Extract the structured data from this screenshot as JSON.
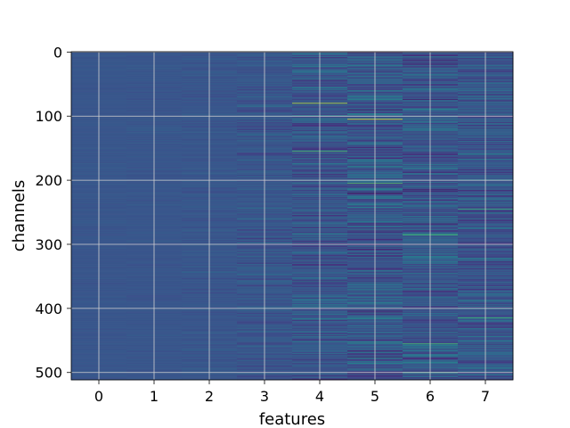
{
  "chart_data": {
    "type": "heatmap",
    "title": "",
    "xlabel": "features",
    "ylabel": "channels",
    "x_ticks": [
      "0",
      "1",
      "2",
      "3",
      "4",
      "5",
      "6",
      "7"
    ],
    "y_ticks": [
      "0",
      "100",
      "200",
      "300",
      "400",
      "500"
    ],
    "y_tick_values": [
      0,
      100,
      200,
      300,
      400,
      500
    ],
    "n_features": 8,
    "n_channels": 512,
    "xlim": [
      -0.5,
      7.5
    ],
    "ylim": [
      511.5,
      -0.5
    ],
    "y_inverted": true,
    "grid": true,
    "colormap": "viridis",
    "column_variance": [
      0.05,
      0.06,
      0.1,
      0.2,
      0.36,
      0.48,
      0.42,
      0.34
    ],
    "notable_cells": [
      {
        "feature": 4,
        "channel": 80,
        "intensity": 0.92
      },
      {
        "feature": 4,
        "channel": 155,
        "intensity": 0.72
      },
      {
        "feature": 5,
        "channel": 105,
        "intensity": 1.0
      },
      {
        "feature": 5,
        "channel": 205,
        "intensity": 0.74
      },
      {
        "feature": 5,
        "channel": 220,
        "intensity": 0.0
      },
      {
        "feature": 6,
        "channel": 285,
        "intensity": 0.72
      },
      {
        "feature": 6,
        "channel": 455,
        "intensity": 0.7
      },
      {
        "feature": 6,
        "channel": 500,
        "intensity": 0.74
      },
      {
        "feature": 7,
        "channel": 245,
        "intensity": 0.66
      },
      {
        "feature": 7,
        "channel": 415,
        "intensity": 0.68
      }
    ]
  }
}
